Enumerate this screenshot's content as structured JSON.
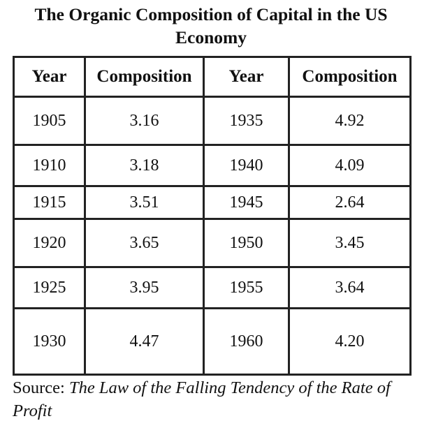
{
  "title": "The Organic Composition of Capital in the US Economy",
  "table": {
    "headers": [
      "Year",
      "Composition",
      "Year",
      "Composition"
    ],
    "rows": [
      [
        "1905",
        "3.16",
        "1935",
        "4.92"
      ],
      [
        "1910",
        "3.18",
        "1940",
        "4.09"
      ],
      [
        "1915",
        "3.51",
        "1945",
        "2.64"
      ],
      [
        "1920",
        "3.65",
        "1950",
        "3.45"
      ],
      [
        "1925",
        "3.95",
        "1955",
        "3.64"
      ],
      [
        "1930",
        "4.47",
        "1960",
        "4.20"
      ]
    ]
  },
  "source": {
    "prefix": "Source: ",
    "work_title": "The Law of the Falling Tendency of the Rate of Profit"
  }
}
